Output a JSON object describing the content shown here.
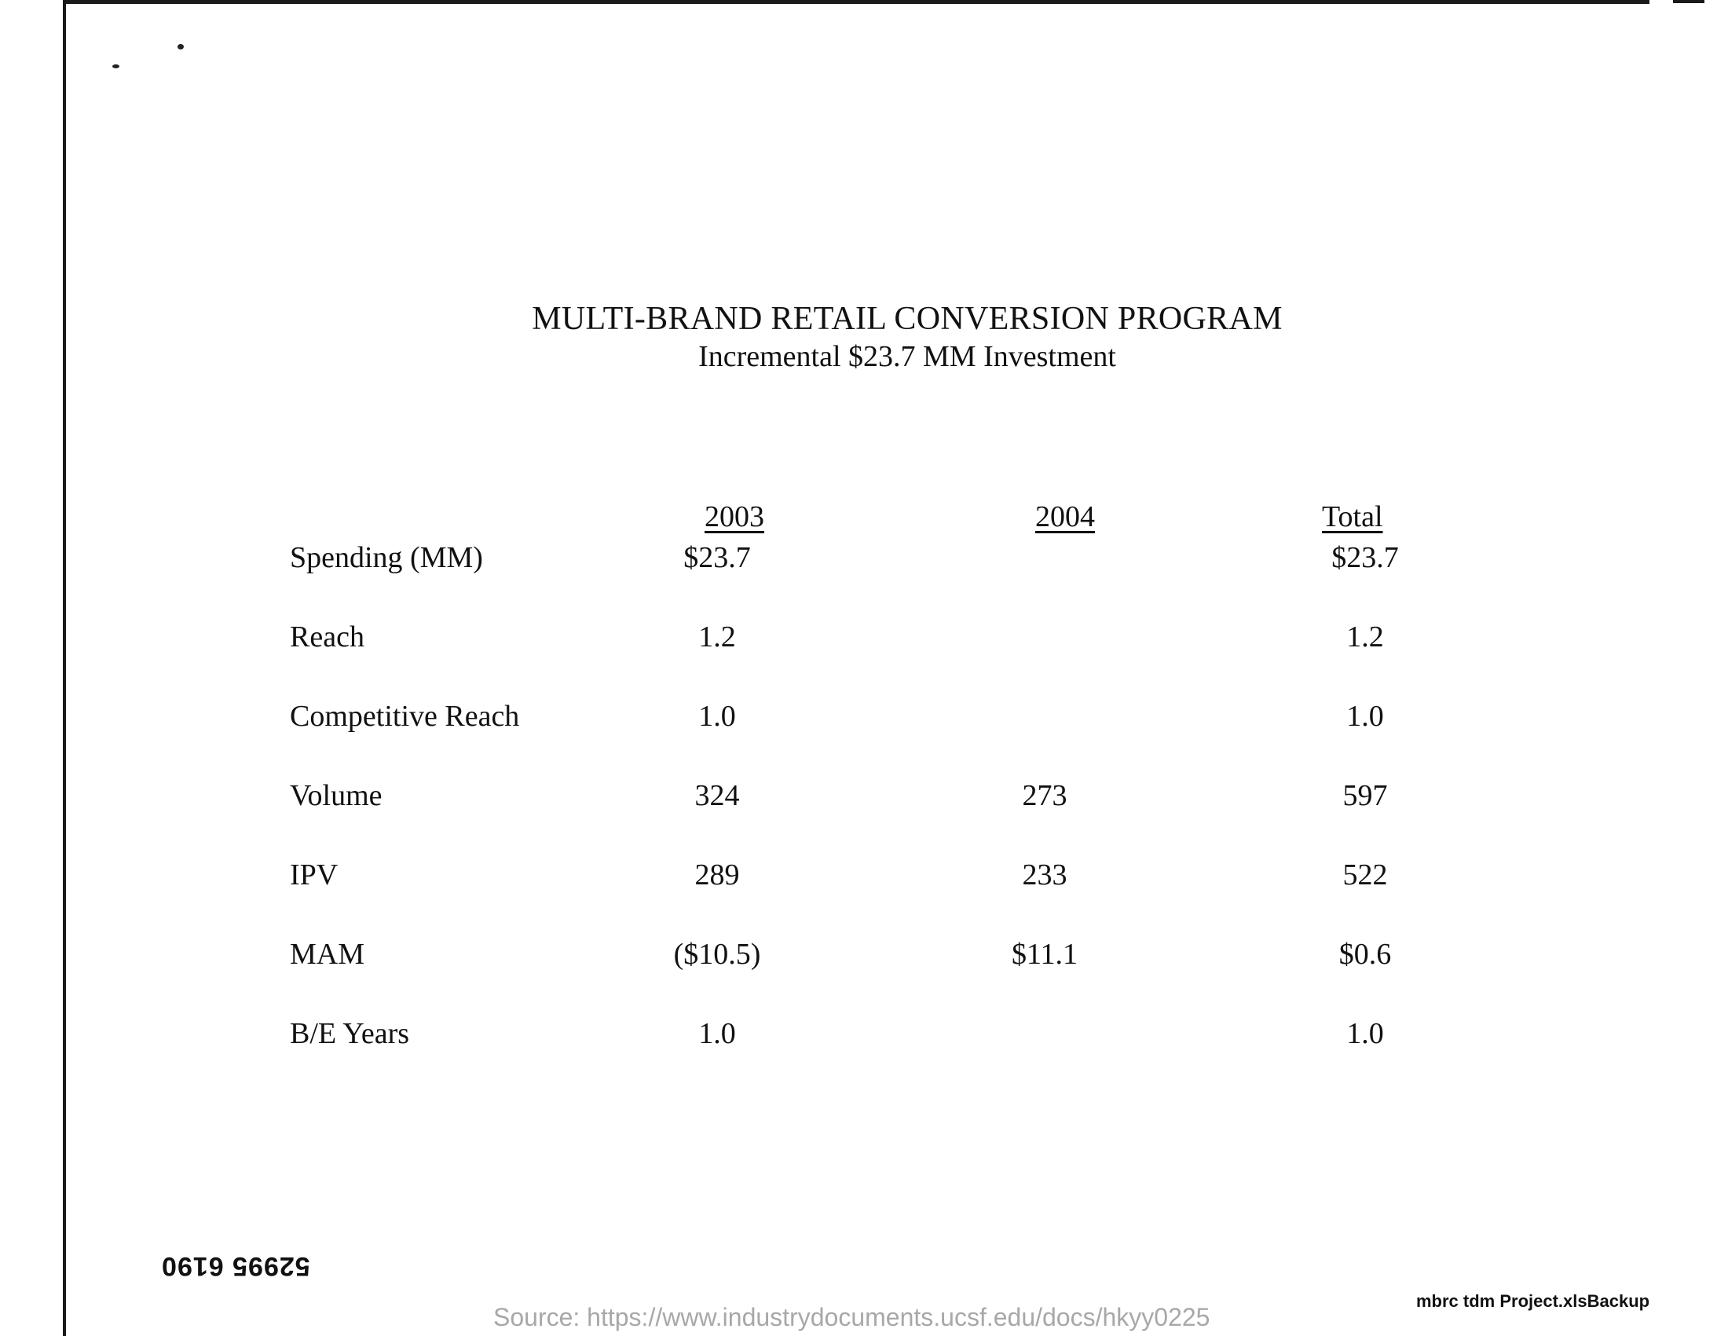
{
  "document": {
    "title": "MULTI-BRAND RETAIL CONVERSION PROGRAM",
    "subtitle": "Incremental $23.7 MM Investment"
  },
  "table": {
    "columns": [
      "2003",
      "2004",
      "Total"
    ],
    "rows": [
      {
        "label": "Spending (MM)",
        "y2003": "$23.7",
        "y2004": "",
        "total": "$23.7"
      },
      {
        "label": "Reach",
        "y2003": "1.2",
        "y2004": "",
        "total": "1.2"
      },
      {
        "label": "Competitive Reach",
        "y2003": "1.0",
        "y2004": "",
        "total": "1.0"
      },
      {
        "label": "Volume",
        "y2003": "324",
        "y2004": "273",
        "total": "597"
      },
      {
        "label": "IPV",
        "y2003": "289",
        "y2004": "233",
        "total": "522"
      },
      {
        "label": "MAM",
        "y2003": "($10.5)",
        "y2004": "$11.1",
        "total": "$0.6"
      },
      {
        "label": "B/E Years",
        "y2003": "1.0",
        "y2004": "",
        "total": "1.0"
      }
    ]
  },
  "footer": {
    "document_number": "52995 6190",
    "source": "Source: https://www.industrydocuments.ucsf.edu/docs/hkyy0225",
    "filename": "mbrc tdm Project.xlsBackup"
  }
}
